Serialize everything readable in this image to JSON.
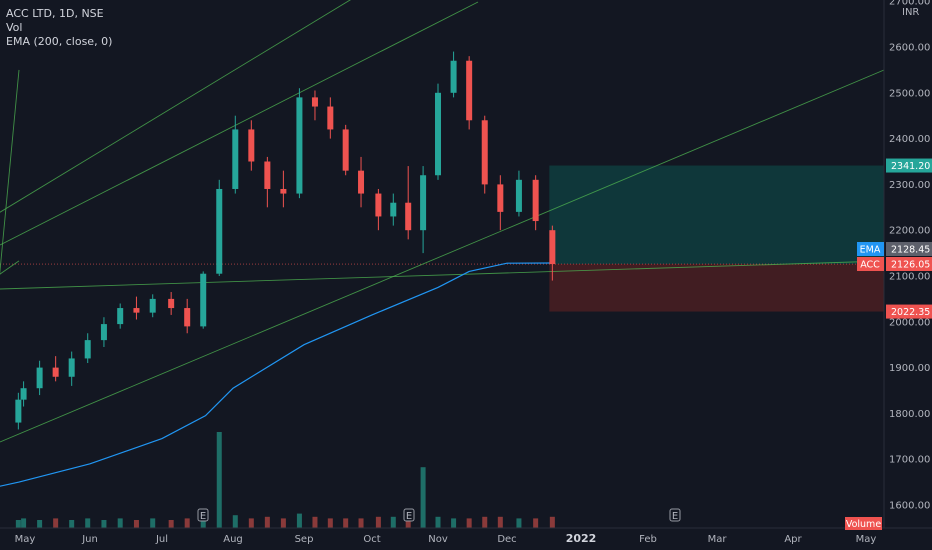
{
  "legend": {
    "symbol": "ACC LTD, 1D, NSE",
    "volume": "Vol",
    "ema": "EMA (200, close, 0)"
  },
  "colors": {
    "background": "#131722",
    "up": "#26a69a",
    "down": "#ef5350",
    "ema": "#2196f3",
    "trendline": "#4caf50",
    "target_zone": "#0f3d3e",
    "stop_zone": "#4a1e22"
  },
  "chart_data": {
    "type": "candlestick",
    "currency": "INR",
    "ylim": [
      1550,
      2700
    ],
    "yticks": [
      "1600.00",
      "1700.00",
      "1800.00",
      "1900.00",
      "2000.00",
      "2100.00",
      "2200.00",
      "2300.00",
      "2400.00",
      "2500.00",
      "2600.00",
      "2700.00"
    ],
    "xticks": [
      "May",
      "Jun",
      "Jul",
      "Aug",
      "Sep",
      "Oct",
      "Nov",
      "Dec",
      "2022",
      "Feb",
      "Mar",
      "Apr",
      "May"
    ],
    "price_tags": [
      {
        "label": "",
        "value": "2341.20",
        "color": "#26a69a"
      },
      {
        "label": "EMA",
        "value": "2128.45",
        "color": "#2196f3"
      },
      {
        "label": "ACC",
        "value": "2126.05",
        "color": "#ef5350"
      },
      {
        "label": "",
        "value": "2022.35",
        "color": "#ef5350"
      }
    ],
    "volume_label": "Volume",
    "events": [
      "E",
      "E",
      "E"
    ],
    "position": {
      "entry": 2126.05,
      "target": 2341.2,
      "stop": 2022.35
    },
    "ema_points": [
      {
        "x": "Apr 22",
        "y": 1641
      },
      {
        "x": "May 1",
        "y": 1650
      },
      {
        "x": "Jun 1",
        "y": 1690
      },
      {
        "x": "Jul 1",
        "y": 1745
      },
      {
        "x": "Jul 20",
        "y": 1795
      },
      {
        "x": "Aug 1",
        "y": 1855
      },
      {
        "x": "Sep 1",
        "y": 1950
      },
      {
        "x": "Oct 1",
        "y": 2015
      },
      {
        "x": "Nov 1",
        "y": 2075
      },
      {
        "x": "Nov 15",
        "y": 2110
      },
      {
        "x": "Dec 1",
        "y": 2128
      },
      {
        "x": "Dec 20",
        "y": 2128.45
      }
    ],
    "trendlines": [
      {
        "from": {
          "x": "Apr 15",
          "y": 2218
        },
        "to": {
          "x": "Sep 28",
          "y": 2720
        }
      },
      {
        "from": {
          "x": "Apr 15",
          "y": 1740
        },
        "to": {
          "x": "May 1",
          "y": 2550
        }
      },
      {
        "from": {
          "x": "Apr 15",
          "y": 2080
        },
        "to": {
          "x": "May 1",
          "y": 2133
        }
      }
    ],
    "candles": [
      {
        "d": "Apr 22",
        "o": 1780,
        "h": 1845,
        "l": 1765,
        "c": 1830
      },
      {
        "d": "May 3",
        "o": 1830,
        "h": 1870,
        "l": 1815,
        "c": 1855
      },
      {
        "d": "May 10",
        "o": 1855,
        "h": 1915,
        "l": 1840,
        "c": 1900
      },
      {
        "d": "May 17",
        "o": 1900,
        "h": 1925,
        "l": 1870,
        "c": 1880
      },
      {
        "d": "May 24",
        "o": 1880,
        "h": 1935,
        "l": 1860,
        "c": 1920
      },
      {
        "d": "May 31",
        "o": 1920,
        "h": 1975,
        "l": 1910,
        "c": 1960
      },
      {
        "d": "Jun 7",
        "o": 1960,
        "h": 2010,
        "l": 1945,
        "c": 1995
      },
      {
        "d": "Jun 14",
        "o": 1995,
        "h": 2040,
        "l": 1985,
        "c": 2030
      },
      {
        "d": "Jun 21",
        "o": 2030,
        "h": 2055,
        "l": 2005,
        "c": 2020
      },
      {
        "d": "Jun 28",
        "o": 2020,
        "h": 2060,
        "l": 2010,
        "c": 2050
      },
      {
        "d": "Jul 5",
        "o": 2050,
        "h": 2065,
        "l": 2015,
        "c": 2030
      },
      {
        "d": "Jul 12",
        "o": 2030,
        "h": 2050,
        "l": 1975,
        "c": 1990
      },
      {
        "d": "Jul 19",
        "o": 1990,
        "h": 2110,
        "l": 1985,
        "c": 2105
      },
      {
        "d": "Jul 26",
        "o": 2105,
        "h": 2310,
        "l": 2100,
        "c": 2290
      },
      {
        "d": "Aug 2",
        "o": 2290,
        "h": 2450,
        "l": 2280,
        "c": 2420
      },
      {
        "d": "Aug 9",
        "o": 2420,
        "h": 2440,
        "l": 2330,
        "c": 2350
      },
      {
        "d": "Aug 16",
        "o": 2350,
        "h": 2360,
        "l": 2250,
        "c": 2290
      },
      {
        "d": "Aug 23",
        "o": 2290,
        "h": 2330,
        "l": 2250,
        "c": 2280
      },
      {
        "d": "Aug 30",
        "o": 2280,
        "h": 2510,
        "l": 2270,
        "c": 2490
      },
      {
        "d": "Sep 6",
        "o": 2490,
        "h": 2505,
        "l": 2440,
        "c": 2470
      },
      {
        "d": "Sep 13",
        "o": 2470,
        "h": 2490,
        "l": 2400,
        "c": 2420
      },
      {
        "d": "Sep 20",
        "o": 2420,
        "h": 2430,
        "l": 2320,
        "c": 2330
      },
      {
        "d": "Sep 27",
        "o": 2330,
        "h": 2360,
        "l": 2250,
        "c": 2280
      },
      {
        "d": "Oct 4",
        "o": 2280,
        "h": 2290,
        "l": 2200,
        "c": 2230
      },
      {
        "d": "Oct 11",
        "o": 2230,
        "h": 2280,
        "l": 2210,
        "c": 2260
      },
      {
        "d": "Oct 18",
        "o": 2260,
        "h": 2340,
        "l": 2180,
        "c": 2200
      },
      {
        "d": "Oct 25",
        "o": 2200,
        "h": 2340,
        "l": 2150,
        "c": 2320
      },
      {
        "d": "Nov 1",
        "o": 2320,
        "h": 2520,
        "l": 2310,
        "c": 2500
      },
      {
        "d": "Nov 8",
        "o": 2500,
        "h": 2590,
        "l": 2490,
        "c": 2570
      },
      {
        "d": "Nov 15",
        "o": 2570,
        "h": 2580,
        "l": 2420,
        "c": 2440
      },
      {
        "d": "Nov 22",
        "o": 2440,
        "h": 2450,
        "l": 2280,
        "c": 2300
      },
      {
        "d": "Nov 29",
        "o": 2300,
        "h": 2320,
        "l": 2200,
        "c": 2240
      },
      {
        "d": "Dec 6",
        "o": 2240,
        "h": 2330,
        "l": 2230,
        "c": 2310
      },
      {
        "d": "Dec 13",
        "o": 2310,
        "h": 2320,
        "l": 2200,
        "c": 2220
      },
      {
        "d": "Dec 20",
        "o": 2200,
        "h": 2210,
        "l": 2090,
        "c": 2126.05
      }
    ],
    "volume": [
      5,
      6,
      5,
      6,
      5,
      6,
      5,
      6,
      5,
      6,
      5,
      6,
      9,
      60,
      8,
      6,
      7,
      6,
      9,
      7,
      6,
      6,
      6,
      7,
      7,
      8,
      38,
      7,
      6,
      6,
      7,
      7,
      6,
      6,
      7
    ]
  }
}
